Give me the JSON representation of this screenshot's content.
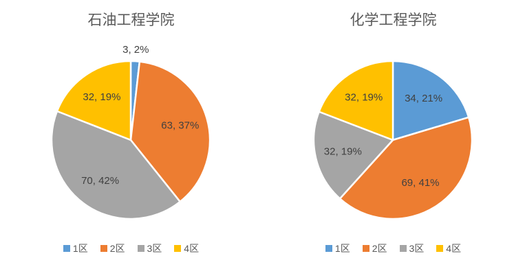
{
  "style": {
    "background": "#FFFFFF",
    "title_color": "#595959",
    "data_label_color": "#404040",
    "legend_text_color": "#595959",
    "slice_border_color": "#FFFFFF"
  },
  "chart_data": [
    {
      "type": "pie",
      "title": "石油工程学院",
      "legend_position": "bottom",
      "start_angle_deg": 0,
      "direction": "clockwise",
      "categories": [
        "1区",
        "2区",
        "3区",
        "4区"
      ],
      "values": [
        3,
        63,
        70,
        32
      ],
      "percent_labels": [
        "2%",
        "37%",
        "42%",
        "19%"
      ],
      "data_labels": [
        "3, 2%",
        "63, 37%",
        "70, 42%",
        "32, 19%"
      ],
      "colors": [
        "#5B9BD5",
        "#ED7D31",
        "#A5A5A5",
        "#FFC000"
      ]
    },
    {
      "type": "pie",
      "title": "化学工程学院",
      "legend_position": "bottom",
      "start_angle_deg": 0,
      "direction": "clockwise",
      "categories": [
        "1区",
        "2区",
        "3区",
        "4区"
      ],
      "values": [
        34,
        69,
        32,
        32
      ],
      "percent_labels": [
        "21%",
        "41%",
        "19%",
        "19%"
      ],
      "data_labels": [
        "34, 21%",
        "69, 41%",
        "32, 19%",
        "32, 19%"
      ],
      "colors": [
        "#5B9BD5",
        "#ED7D31",
        "#A5A5A5",
        "#FFC000"
      ]
    }
  ]
}
